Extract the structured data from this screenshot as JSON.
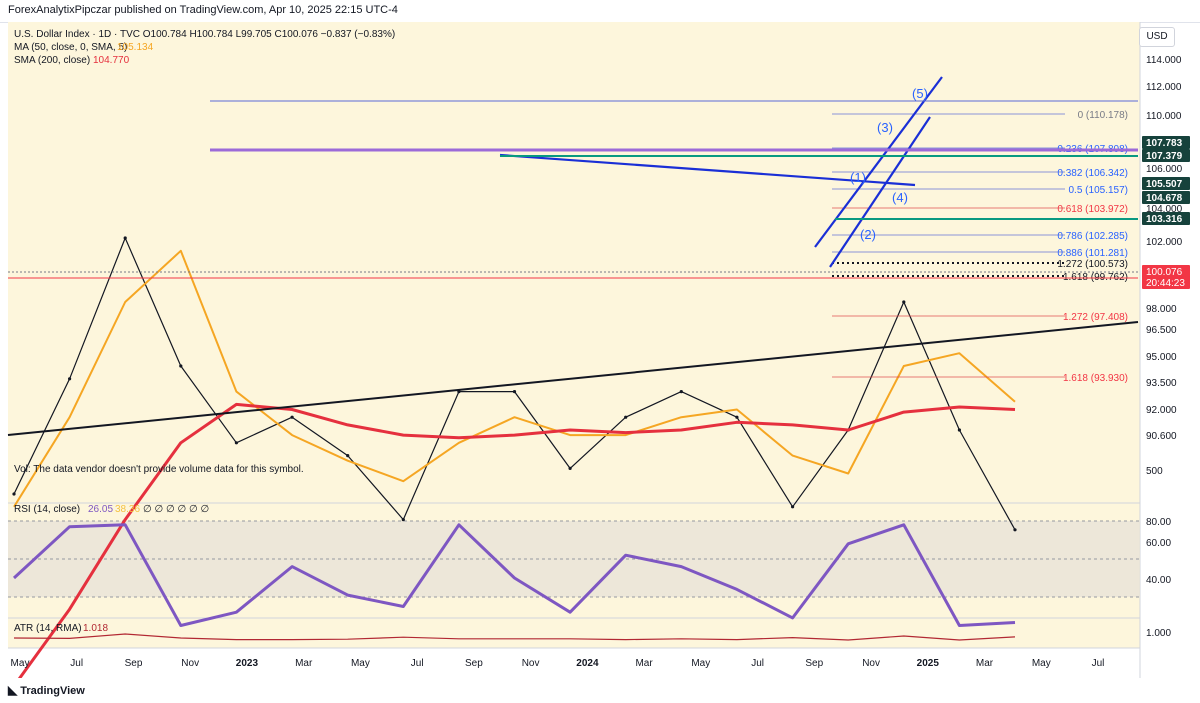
{
  "header": {
    "publisher_line": "ForexAnalytixPipczar published on TradingView.com, Apr 10, 2025 22:15 UTC-4"
  },
  "currency_button": "USD",
  "legend": {
    "symbol_line": "U.S. Dollar Index · 1D · TVC  O100.784  H100.784  L99.705  C100.076  −0.837 (−0.83%)",
    "ma_label": "MA (50, close, 0, SMA, 5)",
    "ma_value": "105.134",
    "sma_label": "SMA (200, close)",
    "sma_value": "104.770",
    "volume_note": "Vol: The data vendor doesn't provide volume data for this symbol.",
    "rsi_label": "RSI (14, close)",
    "rsi_value": "26.05",
    "rsi_ma_value": "38.36",
    "rsi_extra": "∅ ∅ ∅ ∅ ∅ ∅",
    "atr_label": "ATR (14, RMA)",
    "atr_value": "1.018"
  },
  "colors": {
    "ma50": "#f5a623",
    "sma200": "#e5303e",
    "blue_lines": "#1a2fd6",
    "wave_labels": "#2962ff",
    "rsi": "#7e57c2",
    "atr": "#b22833",
    "fib_line": "#5b6bd8",
    "fib_red": "#e04848",
    "green_level": "#089981",
    "price_label": "#f23645"
  },
  "wave_labels": [
    "(1)",
    "(2)",
    "(3)",
    "(4)",
    "(5)"
  ],
  "fib_levels": [
    {
      "text": "0 (110.178)",
      "color": "#787b86"
    },
    {
      "text": "0.236 (107.808)",
      "color": "#2962ff"
    },
    {
      "text": "0.382 (106.342)",
      "color": "#2962ff"
    },
    {
      "text": "0.5 (105.157)",
      "color": "#2962ff"
    },
    {
      "text": "0.618 (103.972)",
      "color": "#f23645"
    },
    {
      "text": "0.786 (102.285)",
      "color": "#2962ff"
    },
    {
      "text": "0.886 (101.281)",
      "color": "#2962ff"
    },
    {
      "text": "1.272 (100.573)",
      "color": "#131722"
    },
    {
      "text": "1.618 (99.762)",
      "color": "#131722"
    },
    {
      "text": "1.272 (97.408)",
      "color": "#f23645"
    },
    {
      "text": "1.618 (93.930)",
      "color": "#f23645"
    }
  ],
  "price_tags": [
    {
      "text": "107.783",
      "kind": "dark"
    },
    {
      "text": "107.379",
      "kind": "dark"
    },
    {
      "text": "105.507",
      "kind": "dark"
    },
    {
      "text": "104.678",
      "kind": "dark"
    },
    {
      "text": "104.000",
      "kind": "plain"
    },
    {
      "text": "103.316",
      "kind": "dark"
    },
    {
      "text": "100.076",
      "kind": "red"
    },
    {
      "text": "20:44:23",
      "kind": "red"
    }
  ],
  "price_axis_ticks": [
    "114.000",
    "112.000",
    "110.000",
    "108.000",
    "106.000",
    "104.000",
    "102.000",
    "100.000",
    "98.000",
    "96.500",
    "95.000",
    "93.500",
    "92.000",
    "90.600"
  ],
  "volume_axis_tick": "500",
  "rsi_axis_ticks": [
    "80.00",
    "60.00",
    "40.00"
  ],
  "atr_axis_tick": "1.000",
  "time_axis": [
    "May",
    "Jul",
    "Sep",
    "Nov",
    "2023",
    "Mar",
    "May",
    "Jul",
    "Sep",
    "Nov",
    "2024",
    "Mar",
    "May",
    "Jul",
    "Sep",
    "Nov",
    "2025",
    "Mar",
    "May",
    "Jul"
  ],
  "footer_brand": "TradingView",
  "chart_data": {
    "type": "line",
    "title": "U.S. Dollar Index · 1D · TVC",
    "xlabel": "",
    "ylabel": "",
    "ylim": [
      89.5,
      115.5
    ],
    "x": [
      "2022-05",
      "2022-07",
      "2022-09",
      "2022-11",
      "2023-01",
      "2023-03",
      "2023-05",
      "2023-07",
      "2023-09",
      "2023-11",
      "2024-01",
      "2024-03",
      "2024-05",
      "2024-07",
      "2024-09",
      "2024-11",
      "2025-01",
      "2025-03",
      "2025-04"
    ],
    "series": [
      {
        "name": "U.S. Dollar Index",
        "values": [
          101.5,
          106.0,
          111.5,
          106.5,
          103.5,
          104.5,
          103.0,
          100.5,
          105.5,
          105.5,
          102.5,
          104.5,
          105.5,
          104.5,
          101.0,
          104.0,
          109.0,
          104.0,
          100.1
        ]
      },
      {
        "name": "MA (50, close, 0, SMA, 5)",
        "values": [
          101.0,
          104.5,
          109.0,
          111.0,
          105.5,
          103.8,
          102.8,
          102.0,
          103.5,
          104.5,
          103.8,
          103.8,
          104.5,
          104.8,
          103.0,
          102.3,
          106.5,
          107.0,
          105.1
        ]
      },
      {
        "name": "SMA (200, close)",
        "values": [
          94.0,
          97.0,
          100.5,
          103.5,
          105.0,
          104.8,
          104.2,
          103.8,
          103.7,
          103.8,
          104.0,
          103.9,
          104.0,
          104.3,
          104.2,
          104.0,
          104.7,
          104.9,
          104.8
        ]
      }
    ]
  }
}
